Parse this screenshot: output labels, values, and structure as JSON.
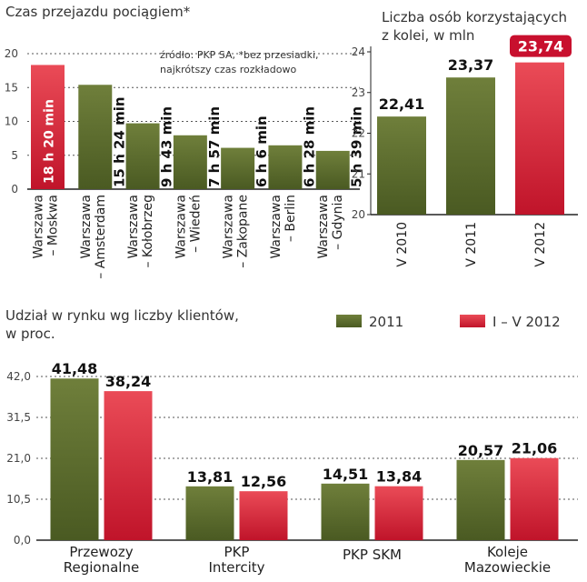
{
  "colors": {
    "green_top": "#6f7f3b",
    "green_bottom": "#4a5a22",
    "red_top": "#ea4b57",
    "red_bottom": "#c0142a",
    "red_label_bg": "#c8102e",
    "grid": "#555555",
    "axis": "#222222"
  },
  "chart_data": [
    {
      "type": "bar",
      "title": "Czas przejazdu pociągiem*",
      "note": [
        "źródło: PKP SA, *bez przesiadki,",
        "najkrótszy czas rozkładowo"
      ],
      "categories": [
        [
          "Warszawa",
          "– Moskwa"
        ],
        [
          "Warszawa",
          "– Amsterdam"
        ],
        [
          "Warszawa",
          "– Kołobrzeg"
        ],
        [
          "Warszawa",
          "– Wiedeń"
        ],
        [
          "Warszawa",
          "– Zakopane"
        ],
        [
          "Warszawa",
          "– Berlin"
        ],
        [
          "Warszawa",
          "– Gdynia"
        ]
      ],
      "values": [
        18.33,
        15.4,
        9.72,
        7.95,
        6.1,
        6.47,
        5.65
      ],
      "labels": [
        "18 h 20 min",
        "15 h 24 min",
        "9 h 43 min",
        "7 h 57 min",
        "6 h 6 min",
        "6 h 28 min",
        "5 h 39 min"
      ],
      "colors": [
        "red",
        "green",
        "green",
        "green",
        "green",
        "green",
        "green"
      ],
      "yticks": [
        "0",
        "5",
        "10",
        "15",
        "20"
      ],
      "ylim": [
        0,
        20
      ],
      "grid": true
    },
    {
      "type": "bar",
      "title": [
        "Liczba osób korzystających",
        "z kolei, w mln"
      ],
      "categories": [
        "V 2010",
        "V 2011",
        "V 2012"
      ],
      "values": [
        22.41,
        23.37,
        23.74
      ],
      "labels": [
        "22,41",
        "23,37",
        "23,74"
      ],
      "colors": [
        "green",
        "green",
        "red"
      ],
      "yticks": [
        "20",
        "21",
        "22",
        "23",
        "24"
      ],
      "ylim": [
        20,
        24
      ],
      "grid": false
    },
    {
      "type": "bar",
      "title": [
        "Udział w rynku wg liczby  klientów,",
        "w proc."
      ],
      "legend": [
        "2011",
        "I – V 2012"
      ],
      "categories": [
        [
          "Przewozy",
          "Regionalne"
        ],
        [
          "PKP",
          "Intercity"
        ],
        [
          "PKP SKM"
        ],
        [
          "Koleje",
          "Mazowieckie"
        ]
      ],
      "series": [
        {
          "name": "2011",
          "values": [
            41.48,
            13.81,
            14.51,
            20.57
          ],
          "labels": [
            "41,48",
            "13,81",
            "14,51",
            "20,57"
          ]
        },
        {
          "name": "I – V 2012",
          "values": [
            38.24,
            12.56,
            13.84,
            21.06
          ],
          "labels": [
            "38,24",
            "12,56",
            "13,84",
            "21,06"
          ]
        }
      ],
      "yticks": [
        "0,0",
        "10,5",
        "21,0",
        "31,5",
        "42,0"
      ],
      "ylim": [
        0,
        42
      ],
      "grid": true
    }
  ]
}
